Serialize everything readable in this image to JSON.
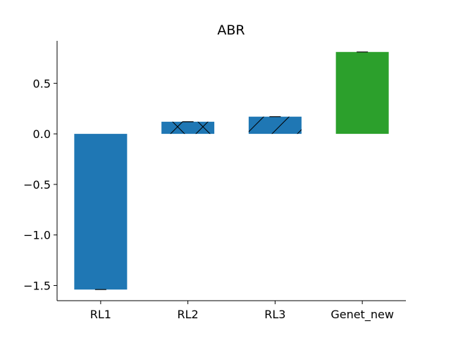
{
  "chart_data": {
    "type": "bar",
    "title": "ABR",
    "xlabel": "",
    "ylabel": "",
    "categories": [
      "RL1",
      "RL2",
      "RL3",
      "Genet_new"
    ],
    "values": [
      -1.54,
      0.12,
      0.17,
      0.81
    ],
    "ylim": [
      -1.65,
      0.92
    ],
    "yticks": [
      0.5,
      0.0,
      -0.5,
      -1.0,
      -1.5
    ],
    "ytick_labels": [
      "0.5",
      "0.0",
      "−0.5",
      "−1.0",
      "−1.5"
    ],
    "bar_colors": [
      "#1f77b4",
      "#1f77b4",
      "#1f77b4",
      "#2ca02c"
    ],
    "hatches": [
      "none",
      "cross",
      "diagonal",
      "none"
    ],
    "error_bars": true,
    "grid": false,
    "legend": "none"
  }
}
